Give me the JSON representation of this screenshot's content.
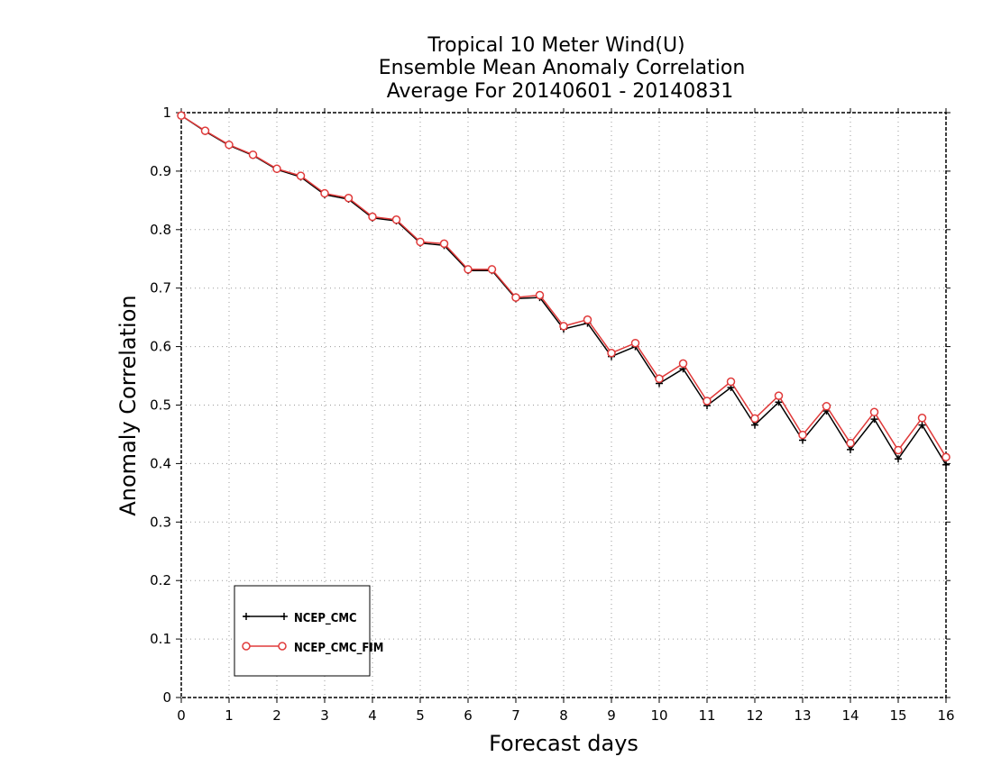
{
  "chart_data": {
    "type": "line",
    "title_lines": [
      "Tropical 10 Meter Wind(U)",
      "Ensemble Mean Anomaly Correlation",
      "Average For 20140601 - 20140831"
    ],
    "xlabel": "Forecast days",
    "ylabel": "Anomaly Correlation",
    "xlim": [
      0,
      16
    ],
    "ylim": [
      0,
      1
    ],
    "x_ticks": [
      "0",
      "1",
      "2",
      "3",
      "4",
      "5",
      "6",
      "7",
      "8",
      "9",
      "10",
      "11",
      "12",
      "13",
      "14",
      "15",
      "16"
    ],
    "y_ticks": [
      "0",
      "0.1",
      "0.2",
      "0.3",
      "0.4",
      "0.5",
      "0.6",
      "0.7",
      "0.8",
      "0.9",
      "1"
    ],
    "grid": true,
    "legend_position": "bottom-left",
    "x": [
      0,
      0.5,
      1,
      1.5,
      2,
      2.5,
      3,
      3.5,
      4,
      4.5,
      5,
      5.5,
      6,
      6.5,
      7,
      7.5,
      8,
      8.5,
      9,
      9.5,
      10,
      10.5,
      11,
      11.5,
      12,
      12.5,
      13,
      13.5,
      14,
      14.5,
      15,
      15.5,
      16
    ],
    "series": [
      {
        "name": "NCEP_CMC",
        "color": "#000000",
        "marker": "plus",
        "values": [
          0.995,
          0.968,
          0.944,
          0.927,
          0.903,
          0.89,
          0.86,
          0.852,
          0.82,
          0.815,
          0.777,
          0.773,
          0.73,
          0.73,
          0.682,
          0.684,
          0.63,
          0.64,
          0.583,
          0.6,
          0.537,
          0.562,
          0.499,
          0.53,
          0.466,
          0.505,
          0.44,
          0.49,
          0.424,
          0.476,
          0.408,
          0.466,
          0.398
        ]
      },
      {
        "name": "NCEP_CMC_FIM",
        "color": "#e03a3a",
        "marker": "circle",
        "values": [
          0.995,
          0.969,
          0.945,
          0.928,
          0.904,
          0.892,
          0.862,
          0.854,
          0.822,
          0.817,
          0.779,
          0.776,
          0.732,
          0.732,
          0.684,
          0.688,
          0.635,
          0.646,
          0.589,
          0.606,
          0.545,
          0.571,
          0.507,
          0.54,
          0.477,
          0.516,
          0.449,
          0.498,
          0.435,
          0.488,
          0.423,
          0.478,
          0.411
        ]
      }
    ]
  }
}
